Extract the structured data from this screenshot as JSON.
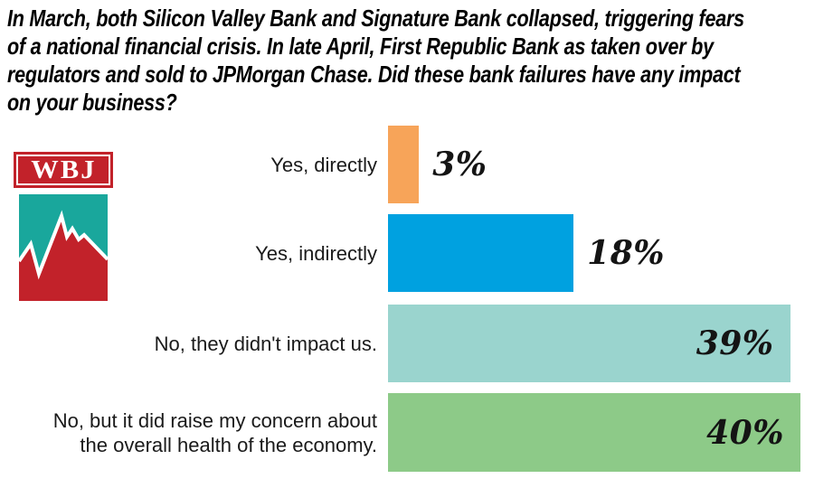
{
  "header": {
    "title": "In March, both Silicon Valley Bank and Signature Bank collapsed, triggering fears\nof a national financial crisis. In late April, First Republic Bank as taken over by\nregulators and sold to JPMorgan Chase. Did these bank failures have any impact\non your business?"
  },
  "logo": {
    "text": "WBJ",
    "masthead_color": "#C2222A",
    "chart_block_color": "#19A79C",
    "mountain_color": "#C2222A",
    "line_color": "#FFFFFF"
  },
  "chart_data": {
    "type": "bar",
    "orientation": "horizontal",
    "title": "Did these bank failures have any impact on your business?",
    "categories": [
      "Yes, directly",
      "Yes, indirectly",
      "No, they didn't impact us.",
      "No, but it did raise my concern about the overall health of the economy."
    ],
    "values": [
      3,
      18,
      39,
      40
    ],
    "xlim": [
      0,
      40
    ],
    "grid": false,
    "legend": false,
    "max_width_pct": 96.8,
    "value_label_color": "#141414",
    "rows": [
      {
        "label": "Yes, directly",
        "value": 3,
        "value_label": "3%",
        "color": "#F7A459",
        "value_position": "outside"
      },
      {
        "label": "Yes, indirectly",
        "value": 18,
        "value_label": "18%",
        "color": "#00A1E0",
        "value_position": "outside"
      },
      {
        "label": "No, they didn't impact us.",
        "value": 39,
        "value_label": "39%",
        "color": "#9AD4CE",
        "value_position": "inside"
      },
      {
        "label": "No, but it did raise my concern about\nthe overall health of the economy.",
        "value": 40,
        "value_label": "40%",
        "color": "#8DCA88",
        "value_position": "inside"
      }
    ]
  }
}
